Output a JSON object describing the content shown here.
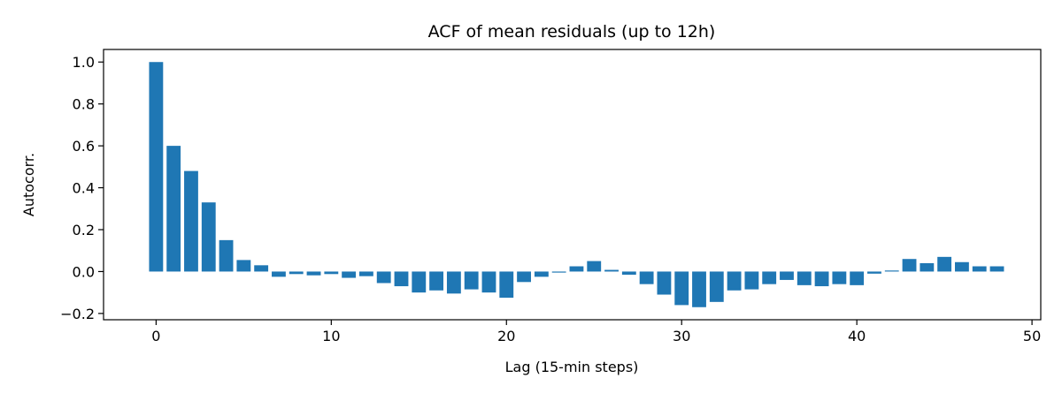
{
  "chart_data": {
    "type": "bar",
    "title": "ACF of mean residuals (up to 12h)",
    "xlabel": "Lag (15-min steps)",
    "ylabel": "Autocorr.",
    "xlim": [
      -3,
      50.5
    ],
    "ylim": [
      -0.23,
      1.06
    ],
    "xticks": [
      0,
      10,
      20,
      30,
      40,
      50
    ],
    "xtick_labels": [
      "0",
      "10",
      "20",
      "30",
      "40",
      "50"
    ],
    "yticks": [
      -0.2,
      0.0,
      0.2,
      0.4,
      0.6,
      0.8,
      1.0
    ],
    "ytick_labels": [
      "−0.2",
      "0.0",
      "0.2",
      "0.4",
      "0.6",
      "0.8",
      "1.0"
    ],
    "grid": false,
    "legend": "none",
    "bar_color": "#1f77b4",
    "x": [
      0,
      1,
      2,
      3,
      4,
      5,
      6,
      7,
      8,
      9,
      10,
      11,
      12,
      13,
      14,
      15,
      16,
      17,
      18,
      19,
      20,
      21,
      22,
      23,
      24,
      25,
      26,
      27,
      28,
      29,
      30,
      31,
      32,
      33,
      34,
      35,
      36,
      37,
      38,
      39,
      40,
      41,
      42,
      43,
      44,
      45,
      46,
      47,
      48
    ],
    "values": [
      1.0,
      0.6,
      0.48,
      0.33,
      0.15,
      0.055,
      0.03,
      -0.025,
      -0.012,
      -0.018,
      -0.012,
      -0.03,
      -0.022,
      -0.055,
      -0.07,
      -0.1,
      -0.09,
      -0.105,
      -0.085,
      -0.1,
      -0.125,
      -0.05,
      -0.025,
      -0.005,
      0.025,
      0.05,
      0.008,
      -0.015,
      -0.06,
      -0.11,
      -0.16,
      -0.17,
      -0.145,
      -0.09,
      -0.085,
      -0.06,
      -0.04,
      -0.065,
      -0.07,
      -0.06,
      -0.065,
      -0.01,
      0.005,
      0.06,
      0.04,
      0.07,
      0.045,
      0.025,
      0.025
    ]
  }
}
